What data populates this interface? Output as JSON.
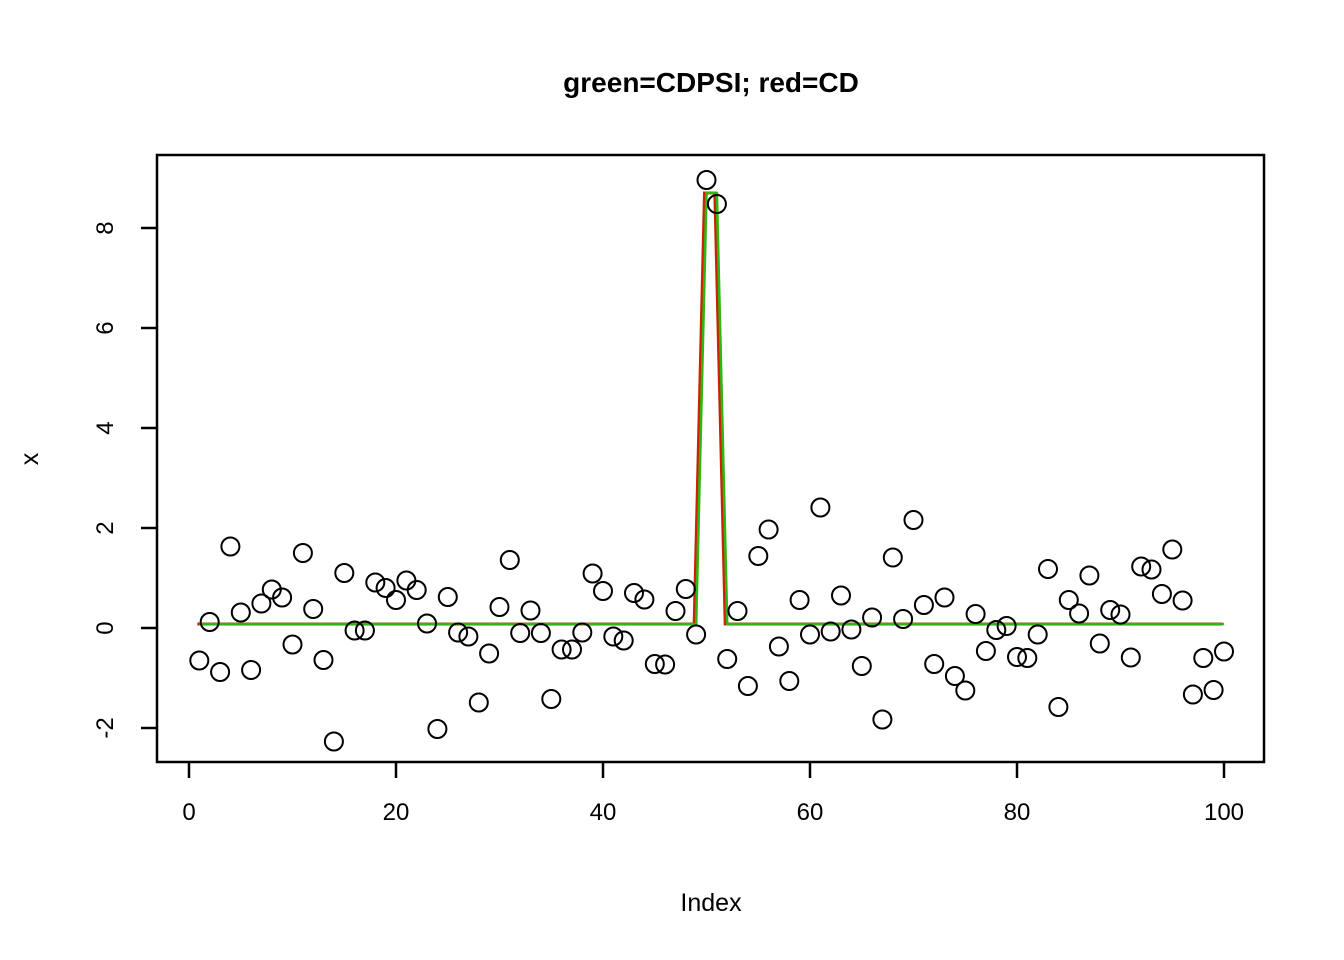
{
  "chart_data": {
    "type": "scatter",
    "title": "green=CDPSI; red=CD",
    "xlabel": "Index",
    "ylabel": "x",
    "x_ticks": [
      0,
      20,
      40,
      60,
      80,
      100
    ],
    "y_ticks": [
      -2,
      0,
      2,
      4,
      6,
      8
    ],
    "xlim": [
      -3,
      104
    ],
    "ylim": [
      -2.7,
      9.4
    ],
    "grid": false,
    "legend_position": "none (encoded in title)",
    "colors": {
      "points": "#000000",
      "cdpsi_line": "#2db714",
      "cd_line": "#cc2200",
      "axis": "#000000"
    },
    "series": [
      {
        "name": "x (observations)",
        "type": "points",
        "marker": "open-circle",
        "x": [
          1,
          2,
          3,
          4,
          5,
          6,
          7,
          8,
          9,
          10,
          11,
          12,
          13,
          14,
          15,
          16,
          17,
          18,
          19,
          20,
          21,
          22,
          23,
          24,
          25,
          26,
          27,
          28,
          29,
          30,
          31,
          32,
          33,
          34,
          35,
          36,
          37,
          38,
          39,
          40,
          41,
          42,
          43,
          44,
          45,
          46,
          47,
          48,
          49,
          50,
          51,
          52,
          53,
          54,
          55,
          56,
          57,
          58,
          59,
          60,
          61,
          62,
          63,
          64,
          65,
          66,
          67,
          68,
          69,
          70,
          71,
          72,
          73,
          74,
          75,
          76,
          77,
          78,
          79,
          80,
          81,
          82,
          83,
          84,
          85,
          86,
          87,
          88,
          89,
          90,
          91,
          92,
          93,
          94,
          95,
          96,
          97,
          98,
          99,
          100
        ],
        "y": [
          -0.65,
          0.12,
          -0.88,
          1.63,
          0.31,
          -0.84,
          0.49,
          0.77,
          0.61,
          -0.33,
          1.5,
          0.38,
          -0.64,
          -2.27,
          1.1,
          -0.05,
          -0.05,
          0.91,
          0.8,
          0.56,
          0.95,
          0.76,
          0.09,
          -2.02,
          0.62,
          -0.09,
          -0.17,
          -1.49,
          -0.51,
          0.42,
          1.36,
          -0.1,
          0.35,
          -0.1,
          -1.42,
          -0.43,
          -0.43,
          -0.09,
          1.09,
          0.74,
          -0.17,
          -0.25,
          0.7,
          0.57,
          -0.72,
          -0.73,
          0.34,
          0.78,
          -0.13,
          8.96,
          8.48,
          -0.62,
          0.34,
          -1.16,
          1.44,
          1.97,
          -0.37,
          -1.06,
          0.56,
          -0.13,
          2.41,
          -0.07,
          0.65,
          -0.03,
          -0.76,
          0.21,
          -1.83,
          1.41,
          0.18,
          2.16,
          0.46,
          -0.72,
          0.61,
          -0.96,
          -1.25,
          0.28,
          -0.46,
          -0.04,
          0.04,
          -0.58,
          -0.6,
          -0.13,
          1.18,
          -1.58,
          0.56,
          0.29,
          1.05,
          -0.31,
          0.36,
          0.27,
          -0.59,
          1.23,
          1.17,
          0.68,
          1.57,
          0.55,
          -1.33,
          -0.6,
          -1.24,
          -0.47
        ]
      },
      {
        "name": "CDPSI estimate (green)",
        "type": "line",
        "color": "#2db714",
        "x": [
          1,
          49,
          50,
          51,
          52,
          100
        ],
        "y": [
          0.08,
          0.08,
          8.7,
          8.7,
          0.08,
          0.08
        ]
      },
      {
        "name": "CD estimate (red, plotted beneath green line)",
        "type": "line",
        "color": "#cc2200",
        "x": [
          1,
          49,
          50,
          51,
          52,
          100
        ],
        "y": [
          0.08,
          0.08,
          8.7,
          8.7,
          0.08,
          0.08
        ]
      }
    ]
  }
}
